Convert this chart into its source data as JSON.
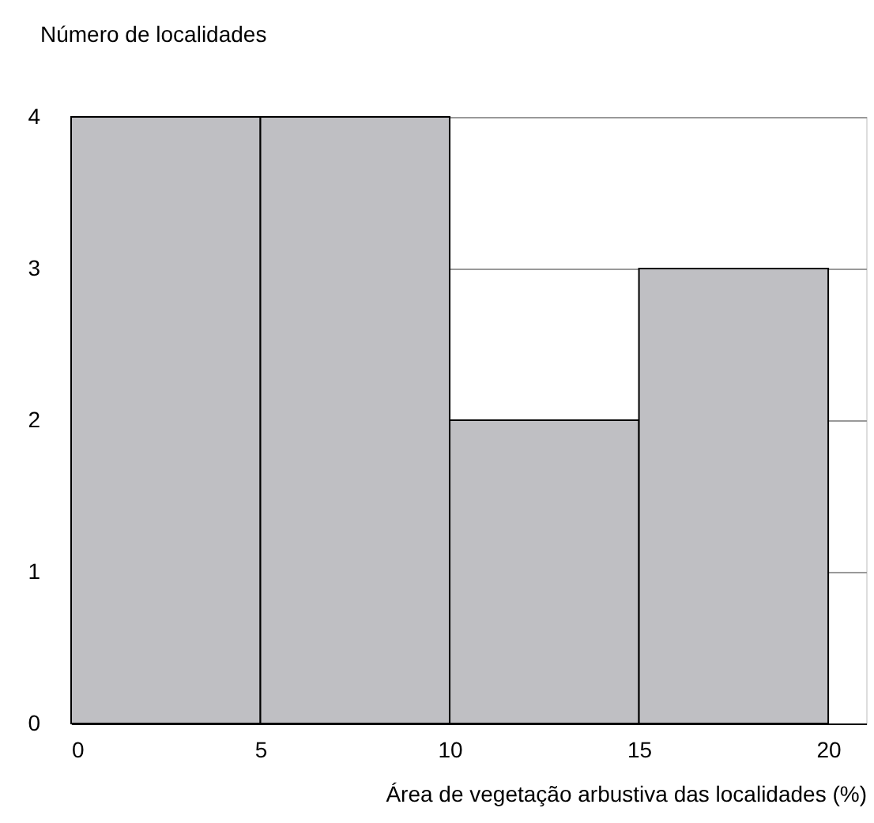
{
  "chart_data": {
    "type": "histogram",
    "xlabel": "Área de vegetação arbustiva das localidades (%)",
    "ylabel": "Número de localidades",
    "bins": [
      0,
      5,
      10,
      15,
      20
    ],
    "values": [
      4,
      4,
      2,
      3
    ],
    "color": "#bfbfc3",
    "xlim": [
      0,
      21
    ],
    "xticks": [
      0,
      5,
      10,
      15,
      20
    ],
    "ylim": [
      0,
      4
    ],
    "yticks": [
      0,
      1,
      2,
      3,
      4
    ],
    "grid": "y"
  }
}
